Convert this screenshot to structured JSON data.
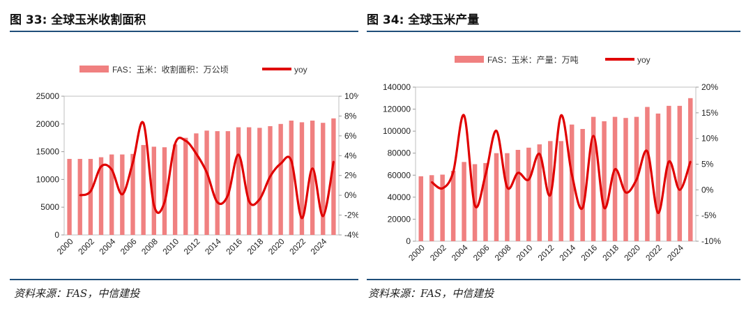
{
  "left": {
    "title": "图 33: 全球玉米收割面积",
    "source": "资料来源：FAS，中信建投",
    "chart_data": {
      "type": "bar",
      "title": "全球玉米收割面积",
      "legend_bar": "FAS：玉米：收割面积：万公顷",
      "legend_line": "yoy",
      "categories": [
        "2000",
        "2001",
        "2002",
        "2003",
        "2004",
        "2005",
        "2006",
        "2007",
        "2008",
        "2009",
        "2010",
        "2011",
        "2012",
        "2013",
        "2014",
        "2015",
        "2016",
        "2017",
        "2018",
        "2019",
        "2020",
        "2021",
        "2022",
        "2023",
        "2024",
        "2025"
      ],
      "xticks": [
        "2000",
        "2002",
        "2004",
        "2006",
        "2008",
        "2010",
        "2012",
        "2014",
        "2016",
        "2018",
        "2020",
        "2022",
        "2024"
      ],
      "series": [
        {
          "name": "FAS：玉米：收割面积：万公顷",
          "axis": "left",
          "values": [
            13700,
            13700,
            13700,
            14000,
            14500,
            14500,
            14600,
            16200,
            15900,
            15800,
            16300,
            17500,
            18300,
            18800,
            18700,
            18700,
            19400,
            19400,
            19300,
            19600,
            20000,
            20600,
            20300,
            20600,
            20200,
            21000
          ]
        },
        {
          "name": "yoy",
          "axis": "right",
          "values": [
            null,
            0.0,
            0.4,
            2.9,
            2.6,
            0.1,
            3.3,
            7.3,
            -1.0,
            -0.7,
            5.2,
            5.5,
            4.2,
            2.3,
            -0.7,
            0.0,
            4.1,
            -0.6,
            -0.4,
            1.9,
            3.2,
            3.5,
            -2.3,
            2.7,
            -2.1,
            3.4
          ]
        }
      ],
      "ylim_left": [
        0,
        25000
      ],
      "yticks_left": [
        "0",
        "5000",
        "10000",
        "15000",
        "20000",
        "25000"
      ],
      "ylim_right": [
        -4,
        10
      ],
      "yticks_right": [
        "-4%",
        "-2%",
        "0%",
        "2%",
        "4%",
        "6%",
        "8%",
        "10%"
      ]
    }
  },
  "right": {
    "title": "图 34: 全球玉米产量",
    "source": "资料来源：FAS，中信建投",
    "chart_data": {
      "type": "bar",
      "title": "全球玉米产量",
      "legend_bar": "FAS：玉米：产量：万吨",
      "legend_line": "yoy",
      "categories": [
        "2000",
        "2001",
        "2002",
        "2003",
        "2004",
        "2005",
        "2006",
        "2007",
        "2008",
        "2009",
        "2010",
        "2011",
        "2012",
        "2013",
        "2014",
        "2015",
        "2016",
        "2017",
        "2018",
        "2019",
        "2020",
        "2021",
        "2022",
        "2023",
        "2024",
        "2025"
      ],
      "xticks": [
        "2000",
        "2002",
        "2004",
        "2006",
        "2008",
        "2010",
        "2012",
        "2014",
        "2016",
        "2018",
        "2020",
        "2022",
        "2024"
      ],
      "series": [
        {
          "name": "FAS：玉米：产量：万吨",
          "axis": "left",
          "values": [
            59000,
            60000,
            60500,
            64000,
            72000,
            70000,
            71000,
            80000,
            80000,
            83000,
            85000,
            88000,
            91000,
            91000,
            106000,
            102000,
            113000,
            109000,
            113000,
            112000,
            113000,
            122000,
            116000,
            123000,
            123000,
            130000
          ]
        },
        {
          "name": "yoy",
          "axis": "right",
          "values": [
            null,
            1.5,
            0.3,
            3.5,
            14.5,
            -3.0,
            3.0,
            11.5,
            0.5,
            3.3,
            2.0,
            7.0,
            -1.0,
            14.5,
            3.0,
            -3.5,
            10.5,
            -3.5,
            4.0,
            -0.5,
            2.0,
            7.5,
            -4.5,
            5.5,
            0.0,
            5.5
          ]
        }
      ],
      "ylim_left": [
        0,
        140000
      ],
      "yticks_left": [
        "0",
        "20000",
        "40000",
        "60000",
        "80000",
        "100000",
        "120000",
        "140000"
      ],
      "ylim_right": [
        -10,
        20
      ],
      "yticks_right": [
        "-10%",
        "-5%",
        "0%",
        "5%",
        "10%",
        "15%",
        "20%"
      ]
    }
  }
}
